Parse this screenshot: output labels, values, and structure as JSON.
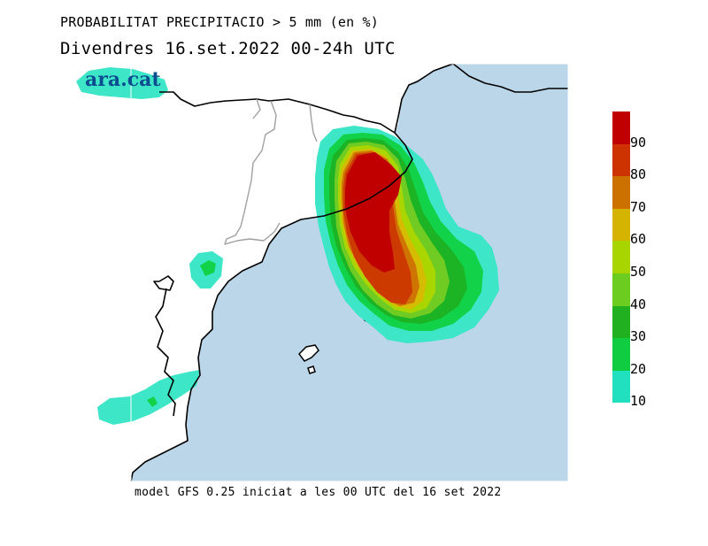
{
  "header": {
    "title": "PROBABILITAT PRECIPITACIO > 5 mm (en %)",
    "subtitle": "Divendres  16.set.2022 00-24h UTC"
  },
  "logo": {
    "text": "ara.cat"
  },
  "footer": {
    "text": "model GFS 0.25 iniciat a les 00 UTC del 16 set 2022"
  },
  "legend": {
    "labels": [
      "90",
      "80",
      "70",
      "60",
      "50",
      "40",
      "30",
      "20",
      "10"
    ],
    "colors": [
      "#c00000",
      "#cc3300",
      "#cc7000",
      "#d4b400",
      "#a8d400",
      "#6ccc20",
      "#20b020",
      "#10cc40",
      "#20e0c0",
      "#40e8d0"
    ]
  },
  "map": {
    "sea_color": "#bad6e8",
    "land_color": "#ffffff",
    "border_color": "#000000",
    "region_border_color": "#a0a0a0",
    "probability_colors": {
      "p10": "#3ee6c8",
      "p20": "#12d24a",
      "p30": "#1cb424",
      "p40": "#70cc22",
      "p50": "#aad600",
      "p60": "#d6bc00",
      "p70": "#d07400",
      "p80": "#cc3a00",
      "p90": "#c00000"
    }
  }
}
